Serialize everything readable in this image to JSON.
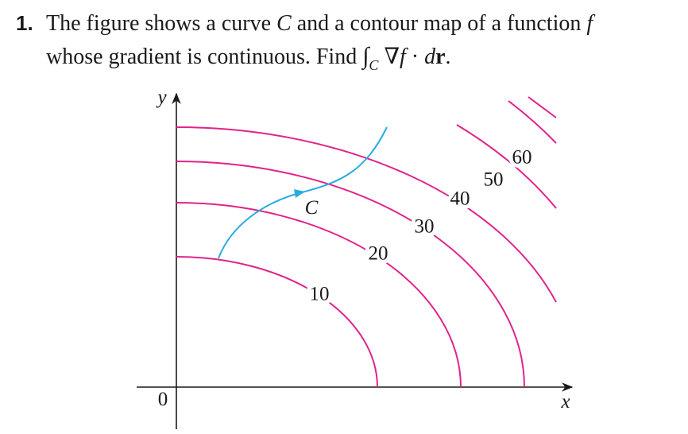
{
  "problem": {
    "number": "1.",
    "line1": [
      "The figure shows a curve ",
      "C",
      " and a contour map of a function ",
      "f"
    ],
    "line2": [
      "whose gradient is continuous. Find ",
      "∫",
      "C",
      " ∇",
      "f",
      " · ",
      "d",
      "r",
      "."
    ]
  },
  "figure": {
    "y_label": "y",
    "x_label": "x",
    "origin_label": "0",
    "curve_label": "C",
    "contour_labels": [
      10,
      20,
      30,
      40,
      50,
      60
    ]
  }
}
